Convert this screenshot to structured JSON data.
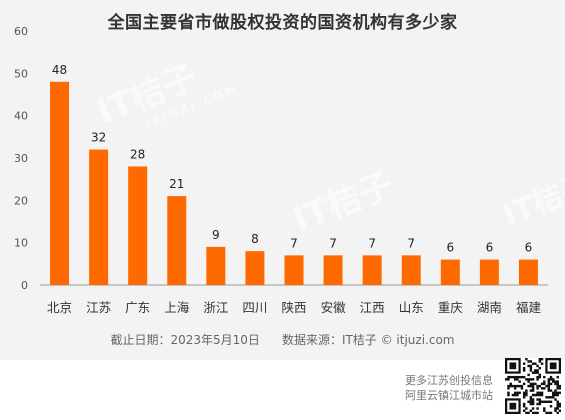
{
  "chart_data": {
    "type": "bar",
    "title": "全国主要省市做股权投资的国资机构有多少家",
    "categories": [
      "北京",
      "江苏",
      "广东",
      "上海",
      "浙江",
      "四川",
      "陕西",
      "安徽",
      "江西",
      "山东",
      "重庆",
      "湖南",
      "福建"
    ],
    "values": [
      48,
      32,
      28,
      21,
      9,
      8,
      7,
      7,
      7,
      7,
      6,
      6,
      6
    ],
    "ylim": [
      0,
      60
    ],
    "yticks": [
      0,
      10,
      20,
      30,
      40,
      50,
      60
    ],
    "xlabel": "",
    "ylabel": "",
    "grid": false,
    "legend": "none",
    "bar_color": "#ff6a00"
  },
  "footnote": {
    "date": "截止日期：2023年5月10日",
    "source": "数据来源：IT桔子 © itjuzi.com"
  },
  "promo": {
    "line1": "更多江苏创投信息",
    "line2": "阿里云镇江城市站"
  },
  "watermark": {
    "text": "IT桔子",
    "subtext": "ITJUZI.COM"
  },
  "colors": {
    "panel_bg": "#f3f3f3",
    "bar": "#ff6a00",
    "axis": "#999999",
    "text": "#333333"
  }
}
